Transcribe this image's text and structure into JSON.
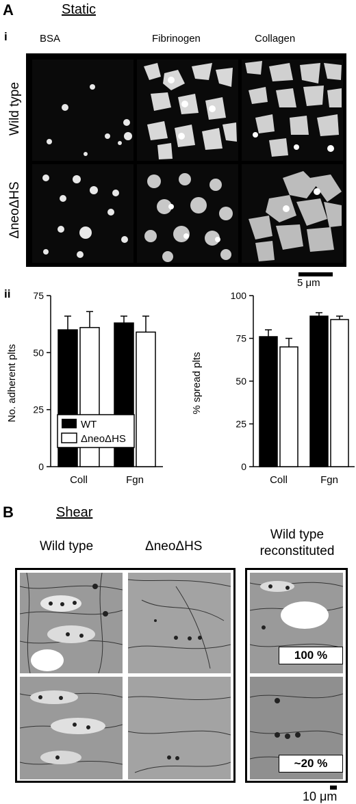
{
  "panelA": {
    "letter": "A",
    "title": "Static",
    "sub_i": "i",
    "sub_ii": "ii",
    "columns": [
      "BSA",
      "Fibrinogen",
      "Collagen"
    ],
    "rows": [
      "Wild type",
      "ΔneoΔHS"
    ],
    "scale_label": "5 μm"
  },
  "panelB": {
    "letter": "B",
    "title": "Shear",
    "columns": [
      "Wild type",
      "ΔneoΔHS"
    ],
    "recon_line1": "Wild type",
    "recon_line2": "reconstituted",
    "pct_top": "100 %",
    "pct_bottom": "~20 %",
    "scale_label": "10 μm"
  },
  "chart_data": [
    {
      "type": "bar",
      "ylabel": "No. adherent plts",
      "categories": [
        "Coll",
        "Fgn"
      ],
      "ylim": [
        0,
        75
      ],
      "yticks": [
        "0",
        "25",
        "50",
        "75"
      ],
      "series": [
        {
          "name": "WT",
          "color": "#000000",
          "values": [
            60,
            63
          ],
          "errors": [
            6,
            3
          ]
        },
        {
          "name": "ΔneoΔHS",
          "color": "#ffffff",
          "values": [
            61,
            59
          ],
          "errors": [
            7,
            7
          ]
        }
      ],
      "legend": "inside-lower-left"
    },
    {
      "type": "bar",
      "ylabel": "% spread plts",
      "categories": [
        "Coll",
        "Fgn"
      ],
      "ylim": [
        0,
        100
      ],
      "yticks": [
        "0",
        "25",
        "50",
        "75",
        "100"
      ],
      "series": [
        {
          "name": "WT",
          "color": "#000000",
          "values": [
            76,
            88
          ],
          "errors": [
            4,
            2
          ]
        },
        {
          "name": "ΔneoΔHS",
          "color": "#ffffff",
          "values": [
            70,
            86
          ],
          "errors": [
            5,
            2
          ]
        }
      ]
    }
  ]
}
